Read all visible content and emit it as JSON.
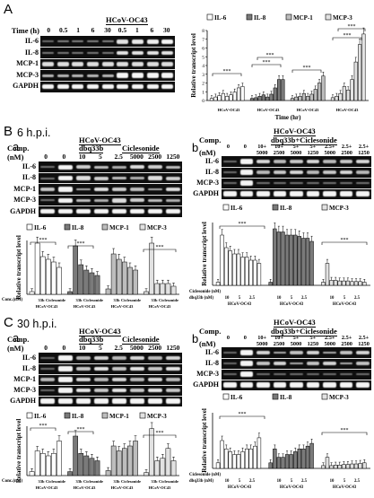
{
  "gene_rows": [
    "IL-6",
    "IL-8",
    "MCP-1",
    "MCP-3",
    "GAPDH"
  ],
  "gene_rows_b": [
    "IL-6",
    "IL-8",
    "MCP-3",
    "GAPDH"
  ],
  "panelA": {
    "label": "A",
    "time_label": "Time (h)",
    "virus": "HCoV-OC43",
    "times": [
      "0",
      "0.5",
      "1",
      "6",
      "30",
      "0.5",
      "1",
      "6",
      "30"
    ],
    "chart": {
      "legend": [
        "IL-6",
        "IL-8",
        "MCP-1",
        "MCP-3"
      ],
      "ylabel": "Relative transcript level",
      "yticks": [
        "0",
        "1",
        "2",
        "3",
        "4",
        "5",
        "6",
        "7",
        "8"
      ],
      "xlabel": "Time (hr)",
      "virus_label": "HCoV-OC43",
      "sig": "***"
    }
  },
  "panelB": {
    "label": "B",
    "title": "6 h.p.i.",
    "a": {
      "label": "a",
      "virus": "HCoV-OC43",
      "comp_label": "Comp.",
      "nm_label": "(nM)",
      "drug1": "dbq33b",
      "drug2": "Ciclesonide",
      "doses": [
        "0",
        "0",
        "10",
        "5",
        "2.5",
        "5000",
        "2500",
        "1250"
      ]
    },
    "b": {
      "label": "b",
      "virus": "HCoV-OC43",
      "comp_label": "Comp.",
      "nm_label": "(nM)",
      "combo": "dbq33b+Ciclesonide",
      "doses_top": [
        "0",
        "0",
        "10+",
        "10+",
        "5+",
        "5+",
        "2.5+",
        "2.5+",
        "2.5+"
      ],
      "doses_bot": [
        "",
        "",
        "5000",
        "2500",
        "5000",
        "1250",
        "5000",
        "2500",
        "1250"
      ]
    },
    "chart_a": {
      "legend": [
        "IL-6",
        "IL-8",
        "MCP-1",
        "MCP-3"
      ],
      "ylabel": "Relative transcript level",
      "conc_label": "Conc.(nM)",
      "groups": [
        "33b",
        "Ciclesonide"
      ],
      "virus_label": "HCoV-OC43",
      "sig": "***"
    },
    "chart_b": {
      "legend": [
        "IL-6",
        "IL-8",
        "MCP-3"
      ],
      "ylabel": "Relative transcript level",
      "row1_label": "Ciclesonide (nM)",
      "row2_label": "dbq33b (nM)",
      "row2_values": [
        "10",
        "5",
        "2.5"
      ],
      "virus_label": "HCoV-OC43",
      "sig": "***"
    }
  },
  "panelC": {
    "label": "C",
    "title": "30 h.p.i.",
    "a": {
      "label": "a",
      "virus": "HCoV-OC43",
      "comp_label": "Comp.",
      "nm_label": "(nM)",
      "drug1": "dbq33b",
      "drug2": "Ciclesonide",
      "doses": [
        "0",
        "0",
        "10",
        "5",
        "2.5",
        "5000",
        "2500",
        "1250"
      ]
    },
    "b": {
      "label": "b",
      "virus": "HCoV-OC43",
      "comp_label": "Comp.",
      "nm_label": "(nM)",
      "combo": "dbq33b+Ciclesonide",
      "doses_top": [
        "0",
        "0",
        "10+",
        "10+",
        "5+",
        "5+",
        "2.5+",
        "2.5+",
        "2.5+"
      ],
      "doses_bot": [
        "",
        "",
        "5000",
        "2500",
        "5000",
        "1250",
        "5000",
        "2500",
        "1250"
      ]
    },
    "chart_a": {
      "legend": [
        "IL-6",
        "IL-8",
        "MCP-1",
        "MCP-3"
      ],
      "ylabel": "Relative transcript level",
      "conc_label": "Conc.(nM)",
      "groups": [
        "33b",
        "Ciclesonide"
      ],
      "virus_label": "HCoV-OC43",
      "sig": "***"
    },
    "chart_b": {
      "legend": [
        "IL-6",
        "IL-8",
        "MCP-3"
      ],
      "ylabel": "Relative transcript level",
      "row1_label": "Ciclesonide (nM)",
      "row2_label": "dbq33b (nM)",
      "row2_values": [
        "10",
        "5",
        "2.5"
      ],
      "virus_label": "HCoV-OC43",
      "sig": "***"
    }
  },
  "colors": {
    "il6": "#ffffff",
    "il8": "#7a7a7a",
    "mcp1": "#bdbdbd",
    "mcp3": "#e2e2e2"
  }
}
